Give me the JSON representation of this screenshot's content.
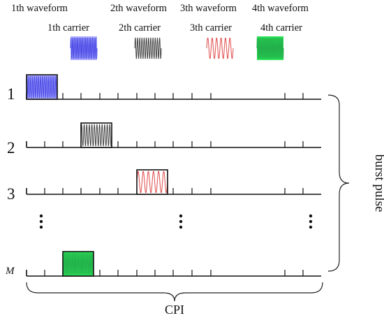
{
  "header": {
    "waveform_labels": [
      "1th waveform",
      "2th waveform",
      "3th waveform",
      "4th waveform"
    ],
    "carrier_labels": [
      "1th carrier",
      "2th carrier",
      "3th carrier",
      "4th carrier"
    ]
  },
  "carriers": [
    {
      "stroke": "#4a4ae6",
      "fill": "#b0b0ff",
      "cycles": 16
    },
    {
      "stroke": "#444444",
      "fill": "#ffffff",
      "cycles": 12
    },
    {
      "stroke": "#e04a4a",
      "fill": "#ffffff",
      "cycles": 6
    },
    {
      "stroke": "#22b04a",
      "fill": "#2ee65a",
      "cycles": 20
    }
  ],
  "rows": [
    {
      "label": "1",
      "carrier": 0
    },
    {
      "label": "2",
      "carrier": 1
    },
    {
      "label": "3",
      "carrier": 2
    },
    {
      "label": "M",
      "carrier": 3
    }
  ],
  "dots": "⋮",
  "annotations": {
    "burst_pulse": "burst pulse",
    "cpi": "CPI"
  }
}
